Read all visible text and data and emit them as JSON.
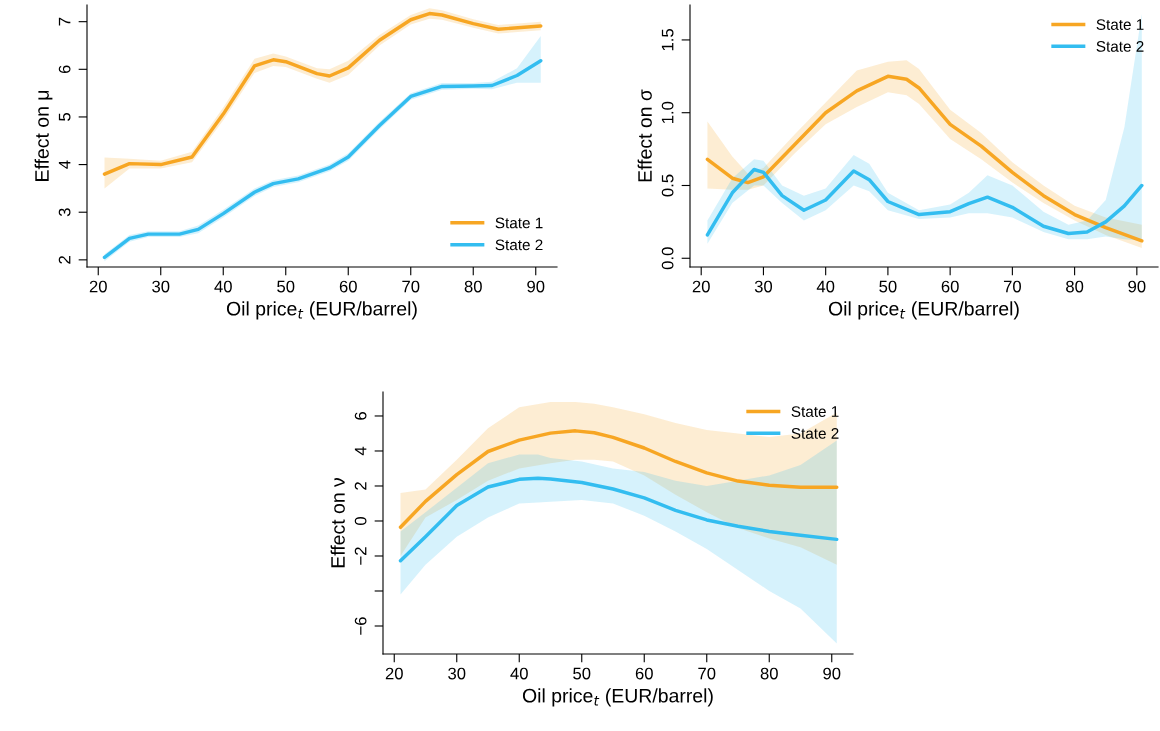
{
  "chart_data": [
    {
      "type": "line",
      "xlabel": "Oil price$_{t}$ (EUR/barrel)",
      "ylabel": "Effect on μ",
      "xlim": [
        18.2,
        93.4
      ],
      "ylim": [
        1.85,
        7.35
      ],
      "xticks": [
        20,
        30,
        40,
        50,
        60,
        70,
        80,
        90
      ],
      "yticks": [
        2,
        3,
        4,
        5,
        6,
        7
      ],
      "legend": "bottom right",
      "grid": false,
      "series": [
        {
          "name": "State 1",
          "color": "#f7a623",
          "x": [
            21,
            25,
            30,
            35,
            40,
            45,
            48,
            50,
            55,
            57,
            60,
            65,
            70,
            73,
            75,
            80,
            84,
            90.8
          ],
          "values": [
            3.8,
            4.02,
            4.0,
            4.16,
            5.06,
            6.07,
            6.2,
            6.16,
            5.91,
            5.86,
            6.03,
            6.61,
            7.04,
            7.17,
            7.14,
            6.96,
            6.84,
            6.91
          ],
          "lower": [
            3.5,
            3.92,
            3.92,
            4.05,
            4.93,
            5.92,
            6.07,
            6.05,
            5.8,
            5.72,
            5.88,
            6.5,
            6.94,
            7.06,
            7.04,
            6.87,
            6.75,
            6.82
          ],
          "upper": [
            4.15,
            4.12,
            4.08,
            4.27,
            5.2,
            6.22,
            6.33,
            6.27,
            6.02,
            6.0,
            6.18,
            6.72,
            7.14,
            7.28,
            7.24,
            7.05,
            6.93,
            7.0
          ]
        },
        {
          "name": "State 2",
          "color": "#33bdf0",
          "x": [
            21,
            25,
            28,
            33,
            36,
            40,
            45,
            48,
            52,
            57,
            60,
            65,
            70,
            75,
            80,
            83,
            87,
            90.8
          ],
          "values": [
            2.05,
            2.45,
            2.54,
            2.54,
            2.64,
            2.97,
            3.42,
            3.6,
            3.7,
            3.93,
            4.16,
            4.82,
            5.43,
            5.64,
            5.65,
            5.66,
            5.87,
            6.18
          ],
          "lower": [
            1.97,
            2.38,
            2.48,
            2.48,
            2.56,
            2.89,
            3.34,
            3.53,
            3.63,
            3.86,
            4.08,
            4.74,
            5.36,
            5.57,
            5.59,
            5.58,
            5.72,
            5.72
          ],
          "upper": [
            2.12,
            2.52,
            2.6,
            2.6,
            2.72,
            3.05,
            3.5,
            3.67,
            3.77,
            4.0,
            4.24,
            4.9,
            5.5,
            5.71,
            5.71,
            5.74,
            6.02,
            6.7
          ]
        }
      ]
    },
    {
      "type": "line",
      "xlabel": "Oil price$_{t}$ (EUR/barrel)",
      "ylabel": "Effect on σ",
      "xlim": [
        18.2,
        93.4
      ],
      "ylim": [
        -0.06,
        1.74
      ],
      "xticks": [
        20,
        30,
        40,
        50,
        60,
        70,
        80,
        90
      ],
      "yticks": [
        {
          "value": 0,
          "label": "0.0"
        },
        {
          "value": 0.5,
          "label": "0.5"
        },
        {
          "value": 1,
          "label": "1.0"
        },
        {
          "value": 1.5,
          "label": "1.5"
        }
      ],
      "legend": "top right",
      "grid": false,
      "series": [
        {
          "name": "State 1",
          "color": "#f7a623",
          "x": [
            21,
            25,
            27.5,
            30,
            35,
            40,
            45,
            50,
            53,
            55,
            60,
            65,
            70,
            75,
            80,
            85,
            90.8
          ],
          "values": [
            0.68,
            0.55,
            0.52,
            0.56,
            0.78,
            1.0,
            1.15,
            1.25,
            1.23,
            1.17,
            0.92,
            0.77,
            0.59,
            0.43,
            0.3,
            0.21,
            0.12
          ],
          "lower": [
            0.48,
            0.47,
            0.47,
            0.5,
            0.72,
            0.92,
            1.04,
            1.14,
            1.12,
            1.06,
            0.82,
            0.68,
            0.52,
            0.38,
            0.26,
            0.16,
            0.07
          ],
          "upper": [
            0.94,
            0.7,
            0.58,
            0.62,
            0.85,
            1.07,
            1.29,
            1.35,
            1.36,
            1.3,
            1.02,
            0.86,
            0.66,
            0.5,
            0.36,
            0.28,
            0.23
          ]
        },
        {
          "name": "State 2",
          "color": "#33bdf0",
          "x": [
            21,
            25,
            28.5,
            30,
            33,
            36.5,
            40,
            44.5,
            47,
            50,
            55,
            60,
            63,
            66,
            70,
            75,
            79,
            82,
            85,
            88,
            90.8
          ],
          "values": [
            0.16,
            0.45,
            0.61,
            0.59,
            0.43,
            0.33,
            0.4,
            0.6,
            0.54,
            0.39,
            0.3,
            0.32,
            0.375,
            0.42,
            0.35,
            0.22,
            0.17,
            0.18,
            0.25,
            0.36,
            0.5
          ],
          "lower": [
            0.1,
            0.38,
            0.5,
            0.5,
            0.38,
            0.26,
            0.33,
            0.5,
            0.46,
            0.33,
            0.27,
            0.28,
            0.31,
            0.31,
            0.28,
            0.18,
            0.13,
            0.13,
            0.15,
            0.13,
            0.12
          ],
          "upper": [
            0.26,
            0.55,
            0.68,
            0.67,
            0.5,
            0.43,
            0.48,
            0.71,
            0.65,
            0.45,
            0.33,
            0.37,
            0.45,
            0.57,
            0.5,
            0.32,
            0.23,
            0.26,
            0.4,
            0.9,
            1.68
          ]
        }
      ]
    },
    {
      "type": "line",
      "xlabel": "Oil price$_{t}$ (EUR/barrel)",
      "ylabel": "Effect on ν",
      "xlim": [
        18.2,
        93.4
      ],
      "ylim": [
        -7.6,
        7.37
      ],
      "xticks": [
        20,
        30,
        40,
        50,
        60,
        70,
        80,
        90
      ],
      "yticks": [
        {
          "value": 6,
          "label": "6"
        },
        {
          "value": 4,
          "label": "4"
        },
        {
          "value": 2,
          "label": "2"
        },
        {
          "value": 0,
          "label": "0"
        },
        {
          "value": -2,
          "label": "−2"
        },
        {
          "value": -4,
          "label": null
        },
        {
          "value": -6,
          "label": "−6"
        }
      ],
      "legend": "top right",
      "grid": false,
      "series": [
        {
          "name": "State 1",
          "color": "#f7a623",
          "x": [
            21,
            25,
            30,
            35,
            40,
            45,
            49,
            52,
            55,
            60,
            65,
            70,
            75,
            80,
            85,
            90.8
          ],
          "values": [
            -0.36,
            1.12,
            2.65,
            3.97,
            4.62,
            5.02,
            5.15,
            5.04,
            4.78,
            4.17,
            3.4,
            2.75,
            2.28,
            2.04,
            1.93,
            1.93
          ],
          "lower": [
            -2.0,
            0.2,
            1.2,
            2.3,
            3.0,
            3.3,
            3.5,
            3.5,
            3.4,
            2.6,
            1.5,
            0.5,
            -0.4,
            -1.0,
            -1.5,
            -2.5
          ],
          "upper": [
            1.6,
            1.8,
            3.5,
            5.3,
            6.5,
            6.8,
            6.8,
            6.7,
            6.5,
            6.1,
            5.6,
            5.2,
            5.0,
            4.8,
            5.0,
            6.2
          ]
        },
        {
          "name": "State 2",
          "color": "#33bdf0",
          "x": [
            21,
            25,
            30,
            35,
            40,
            43,
            45,
            50,
            55,
            60,
            65,
            70,
            75,
            80,
            85,
            90.8
          ],
          "values": [
            -2.27,
            -0.9,
            0.88,
            1.94,
            2.38,
            2.44,
            2.4,
            2.2,
            1.83,
            1.32,
            0.61,
            0.06,
            -0.3,
            -0.6,
            -0.81,
            -1.05
          ],
          "lower": [
            -4.2,
            -2.5,
            -0.9,
            0.2,
            1.0,
            1.05,
            1.1,
            1.2,
            1.0,
            0.3,
            -0.6,
            -1.6,
            -2.8,
            -4.0,
            -5.0,
            -7.0
          ],
          "upper": [
            -0.6,
            0.5,
            1.9,
            3.3,
            3.8,
            3.8,
            3.6,
            3.4,
            3.0,
            2.8,
            2.3,
            2.0,
            2.3,
            2.6,
            3.2,
            4.6
          ]
        }
      ]
    }
  ]
}
